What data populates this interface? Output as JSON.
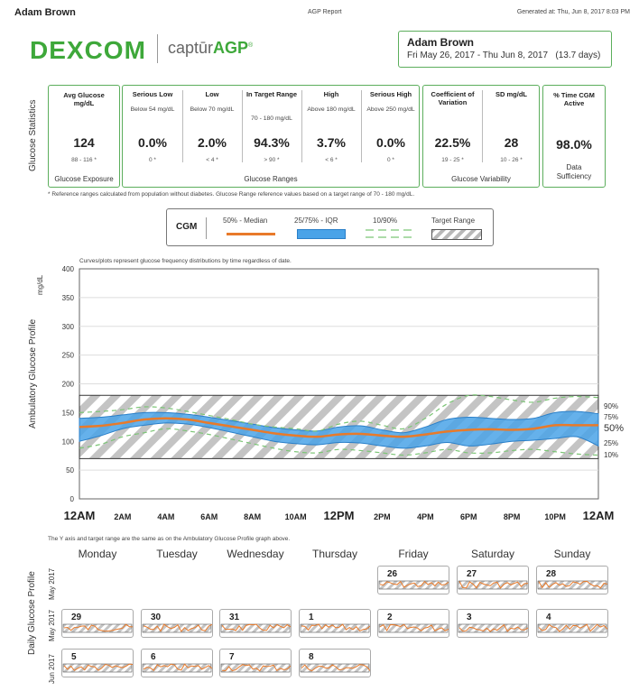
{
  "header": {
    "name": "Adam Brown",
    "report_title": "AGP Report",
    "generated": "Generated at: Thu, Jun 8, 2017 8:03 PM"
  },
  "logo": {
    "dexcom": "DEXCOM",
    "captur_prefix": "captūr",
    "captur_agp": "AGP",
    "reg": "®"
  },
  "patient": {
    "name": "Adam Brown",
    "dates": "Fri May 26, 2017 - Thu Jun 8, 2017",
    "days": "(13.7 days)"
  },
  "side_labels": {
    "glucose_statistics": "Glucose Statistics",
    "agp": "Ambulatory Glucose Profile",
    "daily": "Daily Glucose Profile",
    "may2017": "May 2017",
    "jun2017": "Jun 2017"
  },
  "stats": {
    "avg": {
      "label": "Avg Glucose mg/dL",
      "value": "124",
      "ref": "88 - 116 *",
      "footer": "Glucose Exposure"
    },
    "ranges": [
      {
        "label": "Serious Low",
        "sub": "Below 54 mg/dL",
        "value": "0.0%",
        "ref": "0 *"
      },
      {
        "label": "Low",
        "sub": "Below 70 mg/dL",
        "value": "2.0%",
        "ref": "< 4 *"
      },
      {
        "label": "In Target Range",
        "sub": "70 - 180 mg/dL",
        "value": "94.3%",
        "ref": "> 90 *"
      },
      {
        "label": "High",
        "sub": "Above 180 mg/dL",
        "value": "3.7%",
        "ref": "< 6 *"
      },
      {
        "label": "Serious High",
        "sub": "Above 250 mg/dL",
        "value": "0.0%",
        "ref": "0 *"
      }
    ],
    "ranges_footer": "Glucose Ranges",
    "variability": [
      {
        "label": "Coefficient of Variation",
        "value": "22.5%",
        "ref": "19 - 25 *"
      },
      {
        "label": "SD mg/dL",
        "value": "28",
        "ref": "10 - 26 *"
      }
    ],
    "variability_footer": "Glucose Variability",
    "cgm_active": {
      "label": "% Time CGM Active",
      "value": "98.0%",
      "footer": "Data Sufficiency"
    }
  },
  "ref_note": "* Reference ranges calculated from population without diabetes. Glucose Range reference values based on a target range of 70 - 180 mg/dL.",
  "legend": {
    "title": "CGM",
    "median": "50% - Median",
    "iqr": "25/75% - IQR",
    "decile": "10/90%",
    "target": "Target Range"
  },
  "colors": {
    "green": "#3ea83a",
    "median": "#e87a2a",
    "iqr": "#4aa3e8",
    "decile": "#7cc576",
    "target": "#b8b8b8"
  },
  "chart_note": "Curves/plots represent glucose frequency distributions by time regardless of date.",
  "chart_bottom_note": "The Y axis and target range are the same as on the Ambulatory Glucose Profile graph above.",
  "chart_data": {
    "type": "line",
    "ylabel": "mg/dL",
    "ylim": [
      0,
      400
    ],
    "yticks": [
      0,
      50,
      100,
      150,
      200,
      250,
      300,
      350,
      400
    ],
    "target_range": [
      70,
      180
    ],
    "x_tick_labels": [
      "12AM",
      "2AM",
      "4AM",
      "6AM",
      "8AM",
      "10AM",
      "12PM",
      "2PM",
      "4PM",
      "6PM",
      "8PM",
      "10PM",
      "12AM"
    ],
    "x_hours": [
      0,
      1,
      2,
      3,
      4,
      5,
      6,
      7,
      8,
      9,
      10,
      11,
      12,
      13,
      14,
      15,
      16,
      17,
      18,
      19,
      20,
      21,
      22,
      23,
      24
    ],
    "series": [
      {
        "name": "90%",
        "values": [
          150,
          152,
          155,
          160,
          158,
          152,
          145,
          138,
          130,
          125,
          122,
          118,
          130,
          135,
          128,
          122,
          140,
          165,
          180,
          178,
          172,
          168,
          175,
          178,
          176
        ]
      },
      {
        "name": "75%",
        "values": [
          140,
          142,
          146,
          150,
          150,
          147,
          142,
          136,
          130,
          124,
          120,
          118,
          125,
          127,
          120,
          115,
          125,
          138,
          142,
          140,
          138,
          140,
          150,
          152,
          148
        ]
      },
      {
        "name": "50%",
        "values": [
          125,
          127,
          132,
          138,
          140,
          138,
          132,
          126,
          120,
          114,
          110,
          108,
          112,
          113,
          110,
          108,
          112,
          117,
          120,
          121,
          120,
          122,
          128,
          128,
          128
        ]
      },
      {
        "name": "25%",
        "values": [
          100,
          110,
          122,
          128,
          132,
          130,
          124,
          116,
          108,
          100,
          96,
          94,
          98,
          97,
          92,
          88,
          92,
          98,
          92,
          95,
          100,
          102,
          105,
          108,
          92
        ]
      },
      {
        "name": "10%",
        "values": [
          88,
          95,
          108,
          115,
          122,
          118,
          112,
          104,
          96,
          88,
          82,
          80,
          86,
          84,
          80,
          76,
          80,
          86,
          80,
          80,
          84,
          86,
          82,
          78,
          76
        ]
      }
    ],
    "right_labels": [
      "90%",
      "75%",
      "50%",
      "25%",
      "10%"
    ]
  },
  "daily": {
    "weekdays": [
      "Monday",
      "Tuesday",
      "Wednesday",
      "Thursday",
      "Friday",
      "Saturday",
      "Sunday"
    ],
    "weeks": [
      [
        "",
        "",
        "",
        "",
        "26",
        "27",
        "28"
      ],
      [
        "29",
        "30",
        "31",
        "1",
        "2",
        "3",
        "4"
      ],
      [
        "5",
        "6",
        "7",
        "8",
        "",
        "",
        ""
      ]
    ]
  }
}
